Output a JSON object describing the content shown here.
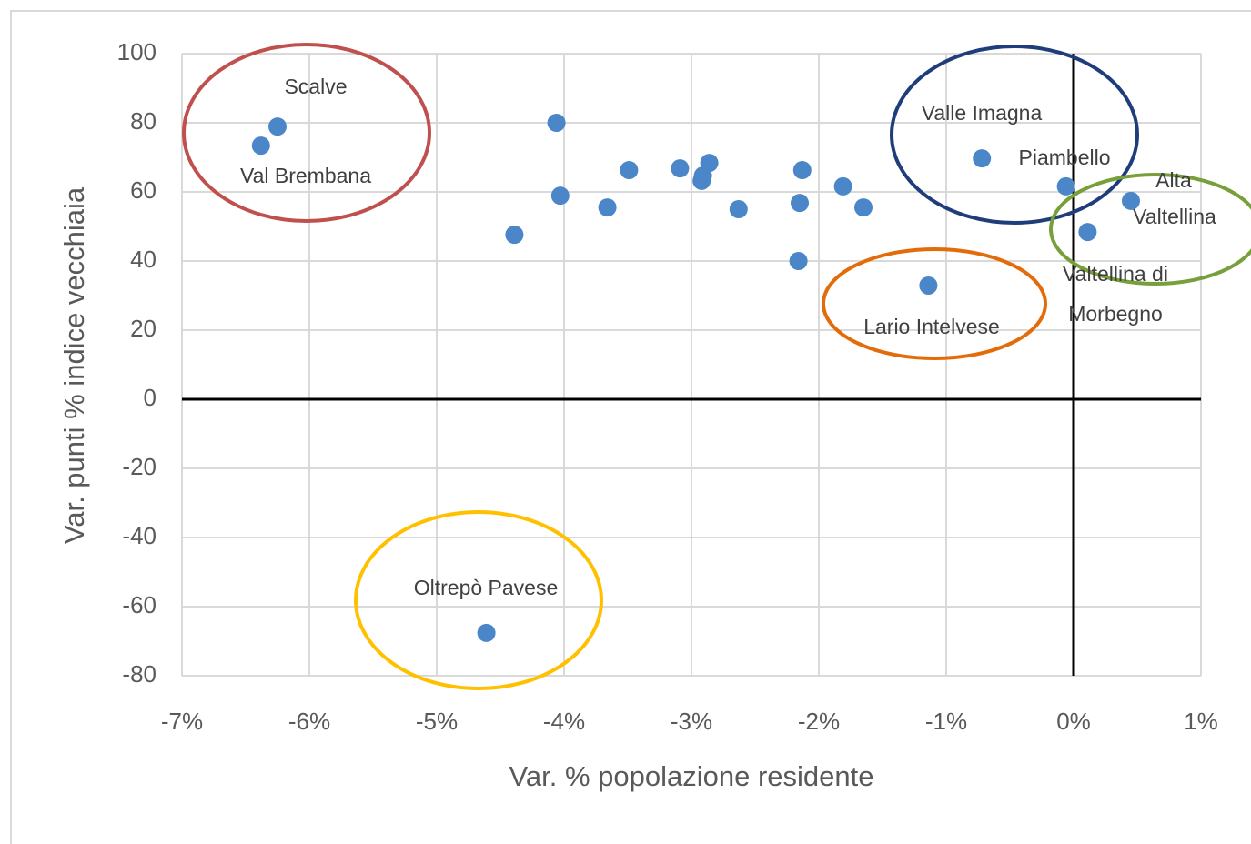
{
  "chart_data": {
    "type": "scatter",
    "xlabel": "Var. % popolazione residente",
    "ylabel": "Var. punti % indice vecchiaia",
    "color": "#4a86c8",
    "x": [
      -6.38,
      -6.25,
      -4.39,
      -4.06,
      -4.03,
      -4.61,
      -3.66,
      -3.49,
      -3.09,
      -2.86,
      -2.91,
      -2.92,
      -2.63,
      -2.13,
      -2.15,
      -2.16,
      -1.81,
      -1.65,
      -1.14,
      -0.72,
      -0.06,
      0.45,
      0.11
    ],
    "values": [
      73.4,
      78.9,
      47.6,
      80,
      58.9,
      -67.6,
      55.5,
      66.3,
      66.8,
      68.4,
      64.7,
      63.2,
      55,
      66.3,
      56.8,
      40,
      61.6,
      55.5,
      32.9,
      69.7,
      61.6,
      57.4,
      48.4
    ],
    "xlim": [
      -7,
      1
    ],
    "ylim": [
      -80,
      100
    ],
    "xticks": [
      {
        "value": -7,
        "label": "-7%"
      },
      {
        "value": -6,
        "label": "-6%"
      },
      {
        "value": -5,
        "label": "-5%"
      },
      {
        "value": -4,
        "label": "-4%"
      },
      {
        "value": -3,
        "label": "-3%"
      },
      {
        "value": -2,
        "label": "-2%"
      },
      {
        "value": -1,
        "label": "-1%"
      },
      {
        "value": 0,
        "label": "0%"
      },
      {
        "value": 1,
        "label": "1%"
      }
    ],
    "yticks": [
      -80,
      -60,
      -40,
      -20,
      0,
      20,
      40,
      60,
      80,
      100
    ],
    "grid": true,
    "annotations": [
      "Scalve",
      "Val Brembana",
      "Valle Imagna",
      "Piambello",
      "Alta",
      "Valtellina",
      "Valtellina di",
      "Morbegno",
      "Lario Intelvese",
      "Oltrepò Pavese"
    ]
  }
}
